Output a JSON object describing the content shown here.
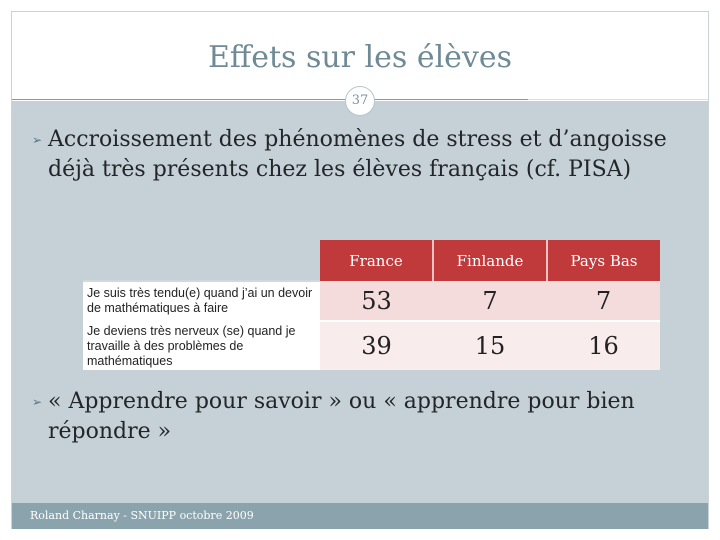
{
  "slide": {
    "title": "Effets sur les élèves",
    "page_number": "37",
    "bullets": [
      "Accroissement des phénomènes de stress et d’angoisse déjà très présents chez les élèves français (cf. PISA)",
      "« Apprendre pour savoir » ou « apprendre pour bien répondre »"
    ],
    "footer": "Roland Charnay - SNUIPP octobre 2009"
  },
  "table": {
    "columns": [
      "France",
      "Finlande",
      "Pays Bas"
    ],
    "rows": [
      {
        "label": "Je suis très tendu(e) quand j’ai un devoir  de mathématiques à faire",
        "values": [
          "53",
          "7",
          "7"
        ]
      },
      {
        "label": "Je deviens très nerveux (se) quand je travaille  à des problèmes de mathématiques",
        "values": [
          "39",
          "15",
          "16"
        ]
      }
    ]
  },
  "colors": {
    "header_red": "#c0393b",
    "content_bg": "#c5d1d7",
    "footer_bg": "#8aa3ac",
    "title_color": "#6e8a96"
  }
}
